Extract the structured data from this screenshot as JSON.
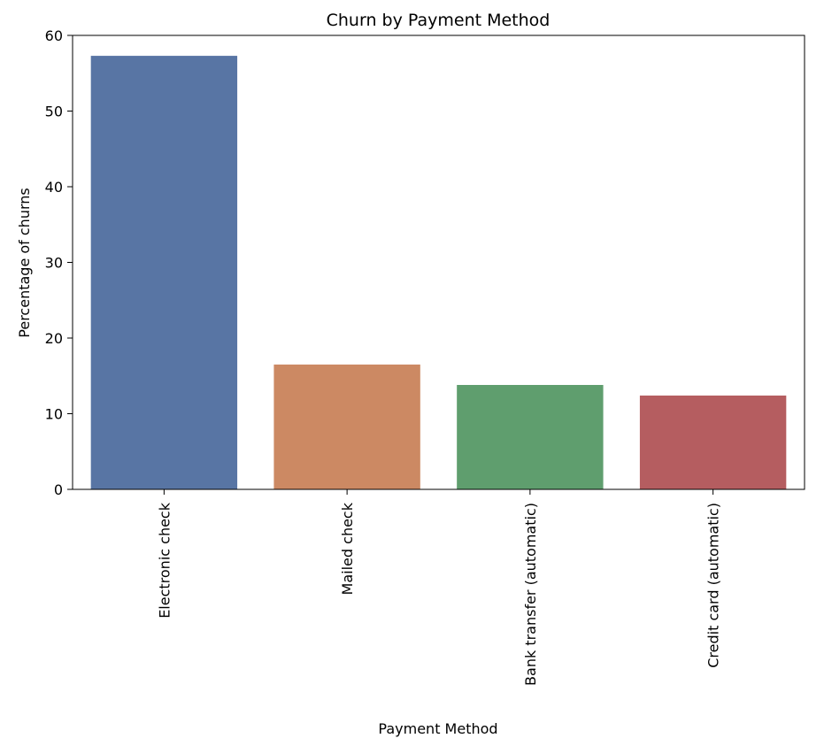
{
  "chart_data": {
    "type": "bar",
    "title": "Churn by Payment Method",
    "xlabel": "Payment Method",
    "ylabel": "Percentage of churns",
    "categories": [
      "Electronic check",
      "Mailed check",
      "Bank transfer (automatic)",
      "Credit card (automatic)"
    ],
    "values": [
      57.3,
      16.5,
      13.8,
      12.4
    ],
    "colors": [
      "#5875a4",
      "#cc8963",
      "#5f9e6e",
      "#b55d60"
    ],
    "ylim": [
      0,
      60
    ],
    "yticks": [
      0,
      10,
      20,
      30,
      40,
      50,
      60
    ],
    "grid": false,
    "legend": "none"
  }
}
